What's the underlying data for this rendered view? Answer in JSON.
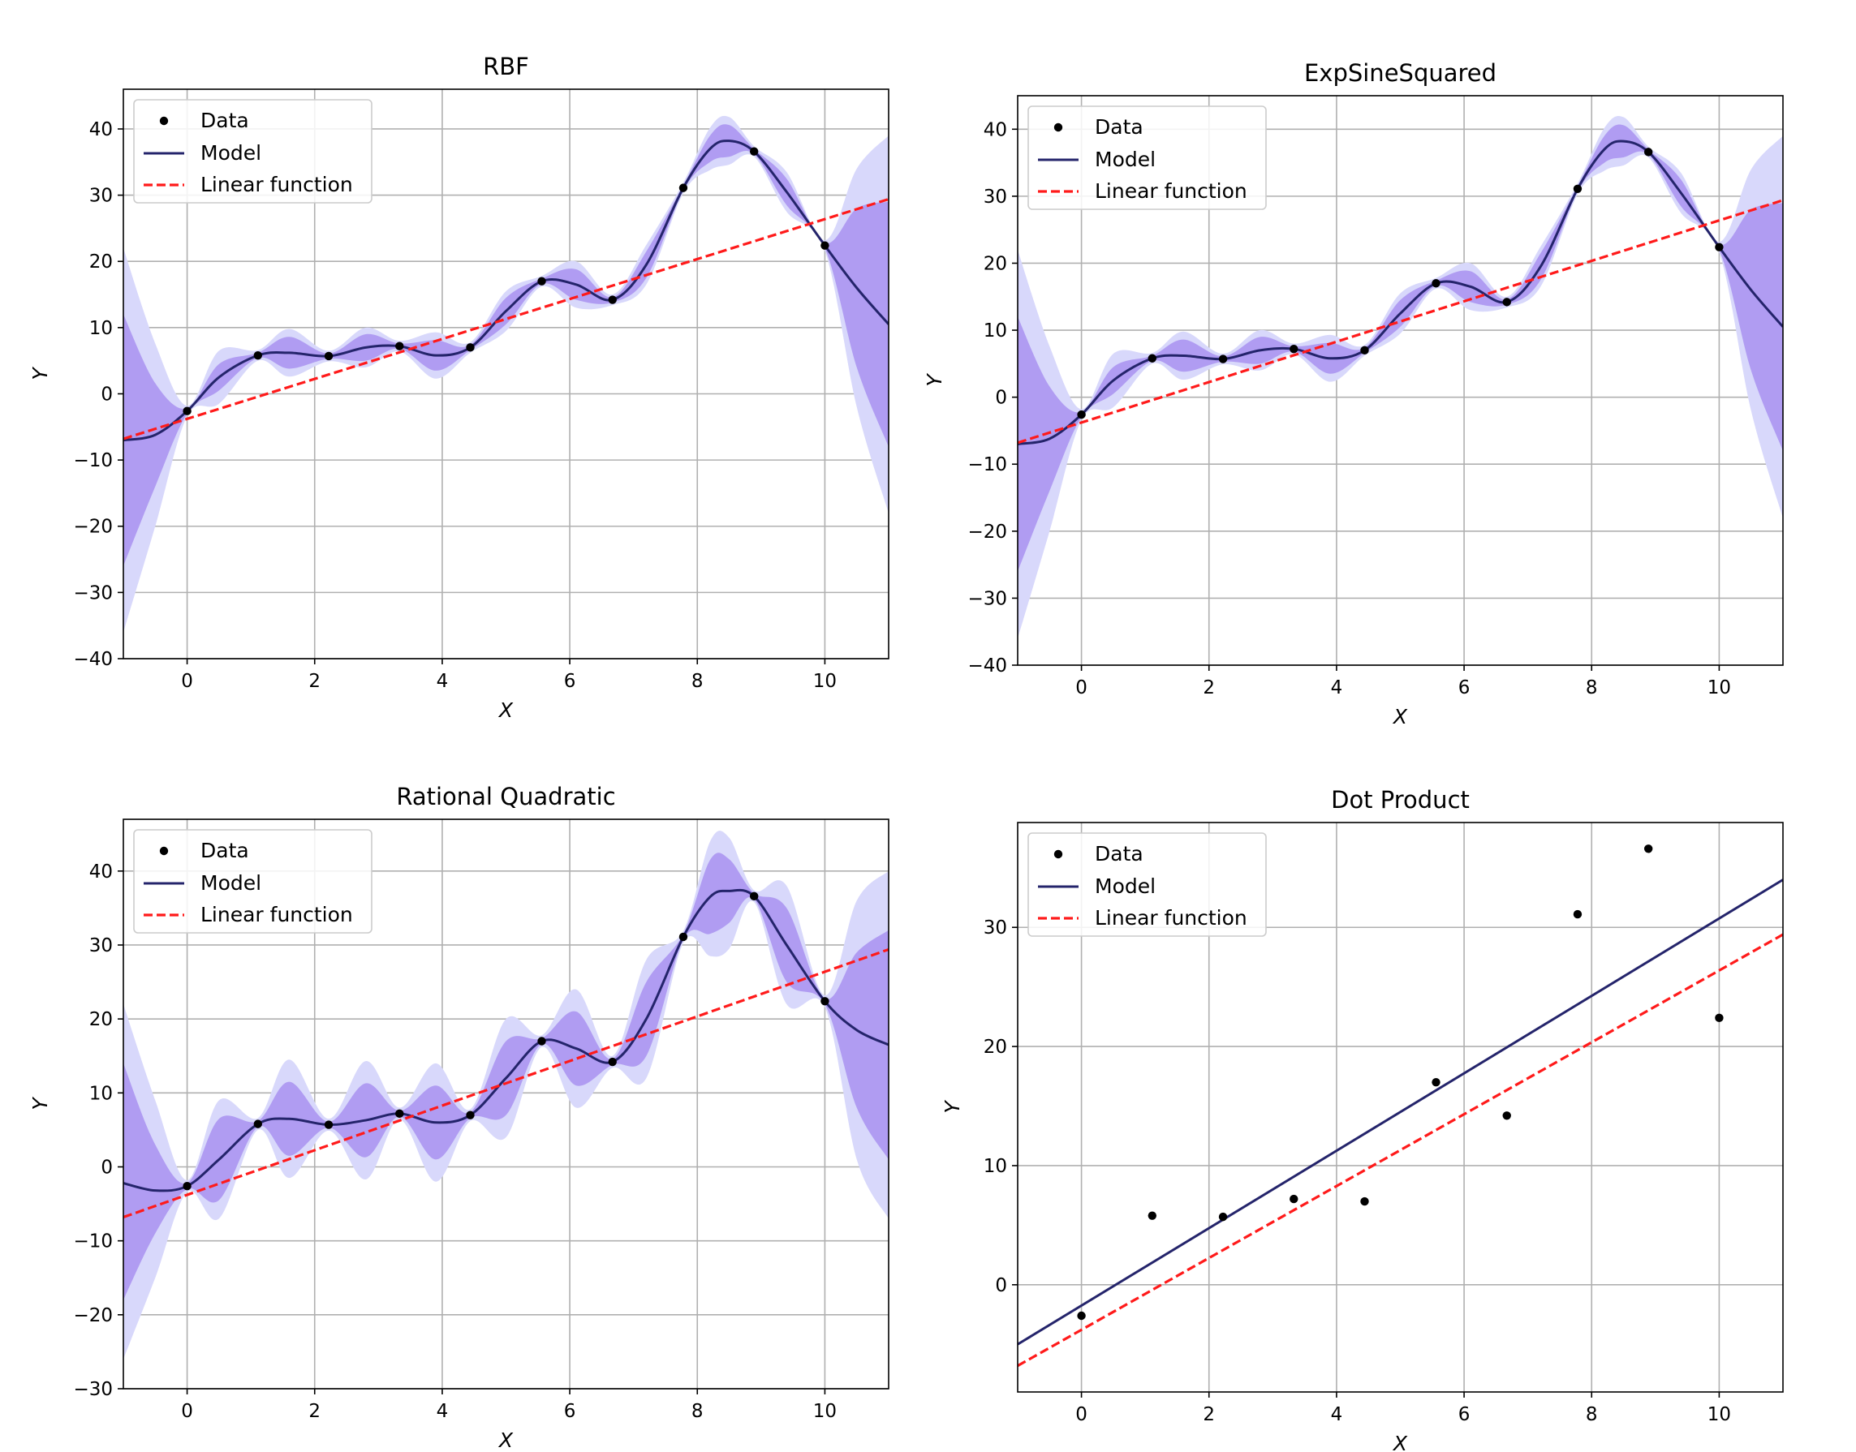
{
  "chart_data": [
    {
      "type": "line",
      "title": "RBF",
      "xlabel": "X",
      "ylabel": "Y",
      "xlim": [
        -1,
        11
      ],
      "ylim": [
        -40,
        46
      ],
      "xticks": [
        0,
        2,
        4,
        6,
        8,
        10
      ],
      "yticks": [
        -40,
        -30,
        -20,
        -10,
        0,
        10,
        20,
        30,
        40
      ],
      "grid": true,
      "legend_placement": "top-left",
      "legend": [
        "Data",
        "Model",
        "Linear function"
      ],
      "data_points": {
        "x": [
          0,
          1.11,
          2.22,
          3.33,
          4.44,
          5.56,
          6.67,
          7.78,
          8.89,
          10
        ],
        "y": [
          -2.6,
          5.8,
          5.7,
          7.2,
          7.0,
          17.0,
          14.2,
          31.1,
          36.6,
          22.4
        ]
      },
      "model": {
        "x": [
          -1,
          -0.5,
          0,
          0.5,
          1.11,
          1.6,
          2.22,
          2.8,
          3.33,
          3.9,
          4.44,
          5.0,
          5.56,
          6.1,
          6.67,
          7.2,
          7.78,
          8.2,
          8.5,
          8.89,
          9.4,
          10,
          10.5,
          11
        ],
        "y": [
          -7,
          -6.2,
          -2.6,
          2.5,
          5.8,
          6.2,
          5.7,
          7.0,
          7.2,
          5.8,
          7.0,
          12.5,
          17.0,
          16.5,
          14.2,
          19.5,
          31.1,
          37.0,
          38.2,
          36.6,
          30.5,
          22.4,
          16.0,
          10.5
        ]
      },
      "band_1sigma": {
        "x": [
          -1,
          -0.5,
          0,
          0.5,
          1.11,
          1.6,
          2.22,
          2.8,
          3.33,
          3.9,
          4.44,
          5.0,
          5.56,
          6.1,
          6.67,
          7.2,
          7.78,
          8.2,
          8.5,
          8.89,
          9.4,
          10,
          10.5,
          11
        ],
        "lower": [
          -26,
          -14,
          -3.0,
          0.5,
          5.4,
          3.8,
          5.3,
          5.0,
          6.8,
          3.5,
          6.6,
          10.5,
          16.6,
          14.2,
          13.8,
          17.5,
          30.7,
          35.0,
          35.8,
          36.2,
          28.5,
          22.0,
          4.0,
          -8.0
        ],
        "upper": [
          12,
          1.6,
          -2.2,
          4.5,
          6.2,
          8.6,
          6.1,
          9.0,
          7.6,
          8.1,
          7.4,
          14.5,
          17.4,
          18.8,
          14.6,
          21.5,
          31.5,
          39.0,
          40.6,
          37.0,
          32.5,
          22.8,
          28.0,
          29.0
        ]
      },
      "band_2sigma": {
        "x": [
          -1,
          -0.5,
          0,
          0.5,
          1.11,
          1.6,
          2.22,
          2.8,
          3.33,
          3.9,
          4.44,
          5.0,
          5.56,
          6.1,
          6.67,
          7.2,
          7.78,
          8.2,
          8.5,
          8.89,
          9.4,
          10,
          10.5,
          11
        ],
        "lower": [
          -36,
          -20,
          -3.4,
          -1.5,
          5.0,
          2.6,
          4.9,
          4.0,
          6.4,
          2.3,
          6.2,
          9.5,
          16.2,
          13.0,
          13.4,
          16.5,
          30.3,
          33.8,
          34.6,
          35.8,
          27.5,
          21.6,
          -2.0,
          -18.0
        ],
        "upper": [
          22,
          7.6,
          -1.8,
          6.5,
          6.6,
          9.8,
          6.5,
          10.0,
          8.0,
          9.3,
          7.8,
          15.5,
          17.8,
          20.0,
          15.0,
          22.5,
          31.9,
          40.2,
          41.8,
          37.4,
          33.5,
          23.2,
          34.0,
          39.0
        ]
      },
      "linear": {
        "x": [
          -1,
          11
        ],
        "y": [
          -6.8,
          29.4
        ]
      }
    },
    {
      "type": "line",
      "title": "ExpSineSquared",
      "xlabel": "X",
      "ylabel": "Y",
      "xlim": [
        -1,
        11
      ],
      "ylim": [
        -40,
        45
      ],
      "xticks": [
        0,
        2,
        4,
        6,
        8,
        10
      ],
      "yticks": [
        -40,
        -30,
        -20,
        -10,
        0,
        10,
        20,
        30,
        40
      ],
      "grid": true,
      "legend_placement": "top-left",
      "legend": [
        "Data",
        "Model",
        "Linear function"
      ],
      "data_points": {
        "x": [
          0,
          1.11,
          2.22,
          3.33,
          4.44,
          5.56,
          6.67,
          7.78,
          8.89,
          10
        ],
        "y": [
          -2.6,
          5.8,
          5.7,
          7.2,
          7.0,
          17.0,
          14.2,
          31.1,
          36.6,
          22.4
        ]
      },
      "model": {
        "x": [
          -1,
          -0.5,
          0,
          0.5,
          1.11,
          1.6,
          2.22,
          2.8,
          3.33,
          3.9,
          4.44,
          5.0,
          5.56,
          6.1,
          6.67,
          7.2,
          7.78,
          8.2,
          8.5,
          8.89,
          9.4,
          10,
          10.5,
          11
        ],
        "y": [
          -7,
          -6.2,
          -2.6,
          2.5,
          5.8,
          6.2,
          5.7,
          7.0,
          7.2,
          5.8,
          7.0,
          12.5,
          17.0,
          16.5,
          14.2,
          19.5,
          31.1,
          37.0,
          38.2,
          36.6,
          30.5,
          22.4,
          16.0,
          10.5
        ]
      },
      "band_1sigma": {
        "x": [
          -1,
          -0.5,
          0,
          0.5,
          1.11,
          1.6,
          2.22,
          2.8,
          3.33,
          3.9,
          4.44,
          5.0,
          5.56,
          6.1,
          6.67,
          7.2,
          7.78,
          8.2,
          8.5,
          8.89,
          9.4,
          10,
          10.5,
          11
        ],
        "lower": [
          -26,
          -14,
          -3.0,
          0.5,
          5.4,
          3.8,
          5.3,
          5.0,
          6.8,
          3.5,
          6.6,
          10.5,
          16.6,
          14.2,
          13.8,
          17.5,
          30.7,
          35.0,
          35.8,
          36.2,
          28.5,
          22.0,
          4.0,
          -8.0
        ],
        "upper": [
          12,
          1.6,
          -2.2,
          4.5,
          6.2,
          8.6,
          6.1,
          9.0,
          7.6,
          8.1,
          7.4,
          14.5,
          17.4,
          18.8,
          14.6,
          21.5,
          31.5,
          39.0,
          40.6,
          37.0,
          32.5,
          22.8,
          28.0,
          29.0
        ]
      },
      "band_2sigma": {
        "x": [
          -1,
          -0.5,
          0,
          0.5,
          1.11,
          1.6,
          2.22,
          2.8,
          3.33,
          3.9,
          4.44,
          5.0,
          5.56,
          6.1,
          6.67,
          7.2,
          7.78,
          8.2,
          8.5,
          8.89,
          9.4,
          10,
          10.5,
          11
        ],
        "lower": [
          -36,
          -20,
          -3.4,
          -1.5,
          5.0,
          2.6,
          4.9,
          4.0,
          6.4,
          2.3,
          6.2,
          9.5,
          16.2,
          13.0,
          13.4,
          16.5,
          30.3,
          33.8,
          34.6,
          35.8,
          27.5,
          21.6,
          -2.0,
          -18.0
        ],
        "upper": [
          22,
          7.6,
          -1.8,
          6.5,
          6.6,
          9.8,
          6.5,
          10.0,
          8.0,
          9.3,
          7.8,
          15.5,
          17.8,
          20.0,
          15.0,
          22.5,
          31.9,
          40.2,
          41.8,
          37.4,
          33.5,
          23.2,
          34.0,
          39.0
        ]
      },
      "linear": {
        "x": [
          -1,
          11
        ],
        "y": [
          -6.8,
          29.4
        ]
      }
    },
    {
      "type": "line",
      "title": "Rational Quadratic",
      "xlabel": "X",
      "ylabel": "Y",
      "xlim": [
        -1,
        11
      ],
      "ylim": [
        -30,
        47
      ],
      "xticks": [
        0,
        2,
        4,
        6,
        8,
        10
      ],
      "yticks": [
        -30,
        -20,
        -10,
        0,
        10,
        20,
        30,
        40
      ],
      "grid": true,
      "legend_placement": "top-left",
      "legend": [
        "Data",
        "Model",
        "Linear function"
      ],
      "data_points": {
        "x": [
          0,
          1.11,
          2.22,
          3.33,
          4.44,
          5.56,
          6.67,
          7.78,
          8.89,
          10
        ],
        "y": [
          -2.6,
          5.8,
          5.7,
          7.2,
          7.0,
          17.0,
          14.2,
          31.1,
          36.6,
          22.4
        ]
      },
      "model": {
        "x": [
          -1,
          -0.5,
          0,
          0.5,
          1.11,
          1.6,
          2.22,
          2.8,
          3.33,
          3.9,
          4.44,
          5.0,
          5.56,
          6.1,
          6.67,
          7.2,
          7.78,
          8.2,
          8.5,
          8.89,
          9.4,
          10,
          10.5,
          11
        ],
        "y": [
          -2.2,
          -3.2,
          -2.6,
          1.0,
          5.8,
          6.5,
          5.7,
          6.3,
          7.2,
          6.0,
          7.0,
          12.0,
          17.0,
          16.0,
          14.2,
          20.0,
          31.1,
          36.5,
          37.3,
          36.6,
          30.0,
          22.4,
          18.5,
          16.5
        ]
      },
      "band_1sigma": {
        "x": [
          -1,
          -0.5,
          0,
          0.5,
          1.11,
          1.6,
          2.22,
          2.8,
          3.33,
          3.9,
          4.44,
          5.0,
          5.56,
          6.1,
          6.67,
          7.2,
          7.78,
          8.2,
          8.5,
          8.89,
          9.4,
          10,
          10.5,
          11
        ],
        "lower": [
          -18,
          -9,
          -3.0,
          -4.5,
          5.4,
          1.5,
          5.3,
          1.3,
          6.8,
          1.0,
          6.6,
          7.0,
          16.6,
          11.0,
          13.8,
          15.0,
          30.7,
          31.5,
          33.0,
          36.2,
          25.0,
          22.0,
          8.0,
          1.0
        ],
        "upper": [
          14,
          3,
          -2.2,
          6.5,
          6.2,
          11.5,
          6.1,
          11.3,
          7.6,
          11.0,
          7.4,
          17.0,
          17.4,
          21.0,
          14.6,
          25.0,
          31.5,
          41.5,
          41.6,
          37.0,
          35.0,
          22.8,
          29.0,
          32.0
        ]
      },
      "band_2sigma": {
        "x": [
          -1,
          -0.5,
          0,
          0.5,
          1.11,
          1.6,
          2.22,
          2.8,
          3.33,
          3.9,
          4.44,
          5.0,
          5.56,
          6.1,
          6.67,
          7.2,
          7.78,
          8.2,
          8.5,
          8.89,
          9.4,
          10,
          10.5,
          11
        ],
        "lower": [
          -26,
          -15,
          -3.4,
          -7.0,
          5.0,
          -1.5,
          4.9,
          -1.7,
          6.4,
          -2.0,
          6.2,
          4.0,
          16.2,
          8.0,
          13.4,
          12.0,
          30.3,
          28.5,
          29.5,
          35.8,
          22.0,
          21.6,
          1.0,
          -7.0
        ],
        "upper": [
          22,
          9,
          -1.8,
          9.0,
          6.6,
          14.5,
          6.5,
          14.3,
          8.0,
          14.0,
          7.8,
          20.0,
          17.8,
          24.0,
          15.0,
          28.0,
          31.9,
          44.0,
          44.5,
          37.4,
          38.0,
          23.2,
          36.0,
          40.0
        ]
      },
      "linear": {
        "x": [
          -1,
          11
        ],
        "y": [
          -6.8,
          29.4
        ]
      }
    },
    {
      "type": "line",
      "title": "Dot Product",
      "xlabel": "X",
      "ylabel": "Y",
      "xlim": [
        -1,
        11
      ],
      "ylim": [
        -9,
        38.8
      ],
      "xticks": [
        0,
        2,
        4,
        6,
        8,
        10
      ],
      "yticks": [
        0,
        10,
        20,
        30
      ],
      "grid": true,
      "legend_placement": "top-left",
      "legend": [
        "Data",
        "Model",
        "Linear function"
      ],
      "data_points": {
        "x": [
          0,
          1.11,
          2.22,
          3.33,
          4.44,
          5.56,
          6.67,
          7.78,
          8.89,
          10
        ],
        "y": [
          -2.6,
          5.8,
          5.7,
          7.2,
          7.0,
          17.0,
          14.2,
          31.1,
          36.6,
          22.4
        ]
      },
      "model": {
        "x": [
          -1,
          11
        ],
        "y": [
          -5.0,
          34.0
        ]
      },
      "linear": {
        "x": [
          -1,
          11
        ],
        "y": [
          -6.8,
          29.4
        ]
      }
    }
  ]
}
